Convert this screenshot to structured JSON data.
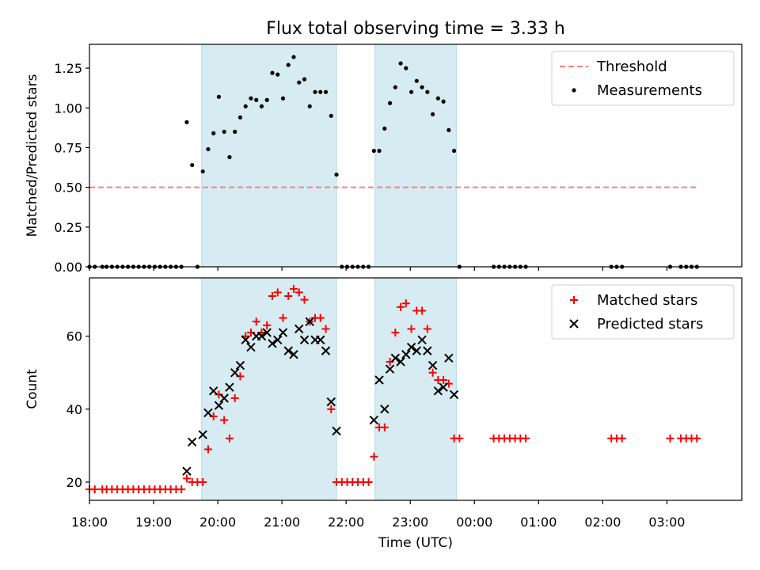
{
  "chart_data": {
    "title": "Flux total observing time = 3.33 h",
    "xlabel": "Time (UTC)",
    "x_tick_labels": [
      "18:00",
      "19:00",
      "20:00",
      "21:00",
      "22:00",
      "23:00",
      "00:00",
      "01:00",
      "02:00",
      "03:00"
    ],
    "observing_windows": [
      {
        "start": "19:45",
        "end": "21:51"
      },
      {
        "start": "22:27",
        "end": "23:43"
      }
    ],
    "window_color": "#add8e6",
    "panels": [
      {
        "type": "scatter",
        "ylabel": "Matched/Predicted stars",
        "ylim": [
          0,
          1.4
        ],
        "y_ticks": [
          0.0,
          0.25,
          0.5,
          0.75,
          1.0,
          1.25
        ],
        "y_tick_labels": [
          "0.00",
          "0.25",
          "0.50",
          "0.75",
          "1.00",
          "1.25"
        ],
        "legend_position": "top-right",
        "series": [
          {
            "name": "Threshold",
            "style": "dashed-line",
            "color": "#ff7f7f",
            "x": [
              "18:00",
              "03:30"
            ],
            "y": [
              0.5,
              0.5
            ]
          },
          {
            "name": "Measurements",
            "style": "dot",
            "color": "#000000",
            "x": [
              "18:00",
              "18:05",
              "18:12",
              "18:16",
              "18:21",
              "18:26",
              "18:31",
              "18:36",
              "18:41",
              "18:46",
              "18:51",
              "18:56",
              "19:01",
              "19:06",
              "19:11",
              "19:16",
              "19:21",
              "19:26",
              "19:31",
              "19:36",
              "19:41",
              "19:46",
              "19:51",
              "19:56",
              "20:01",
              "20:06",
              "20:11",
              "20:16",
              "20:21",
              "20:26",
              "20:31",
              "20:36",
              "20:41",
              "20:46",
              "20:51",
              "20:56",
              "21:01",
              "21:06",
              "21:11",
              "21:16",
              "21:21",
              "21:26",
              "21:31",
              "21:36",
              "21:41",
              "21:46",
              "21:51",
              "21:56",
              "22:01",
              "22:06",
              "22:11",
              "22:16",
              "22:21",
              "22:26",
              "22:31",
              "22:36",
              "22:41",
              "22:46",
              "22:51",
              "22:56",
              "23:01",
              "23:06",
              "23:11",
              "23:16",
              "23:21",
              "23:26",
              "23:31",
              "23:36",
              "23:41",
              "23:46",
              "00:18",
              "00:23",
              "00:28",
              "00:33",
              "00:38",
              "00:43",
              "00:48",
              "02:08",
              "02:13",
              "02:18",
              "03:03",
              "03:13",
              "03:18",
              "03:23",
              "03:28"
            ],
            "y": [
              0,
              0,
              0,
              0,
              0,
              0,
              0,
              0,
              0,
              0,
              0,
              0,
              0,
              0,
              0,
              0,
              0,
              0,
              0.91,
              0.64,
              0,
              0.6,
              0.74,
              0.84,
              1.07,
              0.85,
              0.69,
              0.85,
              0.94,
              1.01,
              1.06,
              1.05,
              1.01,
              1.05,
              1.22,
              1.21,
              1.06,
              1.27,
              1.32,
              1.16,
              1.18,
              1.01,
              1.1,
              1.1,
              1.1,
              0.95,
              0.58,
              0,
              0,
              0,
              0,
              0,
              0,
              0.73,
              0.73,
              0.87,
              1.03,
              1.13,
              1.28,
              1.25,
              1.1,
              1.17,
              1.13,
              1.1,
              0.96,
              1.06,
              1.04,
              0.86,
              0.73,
              0,
              0,
              0,
              0,
              0,
              0,
              0,
              0,
              0,
              0,
              0,
              0,
              0,
              0,
              0,
              0
            ]
          }
        ]
      },
      {
        "type": "scatter",
        "ylabel": "Count",
        "ylim": [
          15,
          76
        ],
        "y_ticks": [
          20,
          40,
          60
        ],
        "y_tick_labels": [
          "20",
          "40",
          "60"
        ],
        "legend_position": "top-right",
        "series": [
          {
            "name": "Matched stars",
            "style": "plus",
            "color": "#ff0000",
            "x": [
              "18:00",
              "18:05",
              "18:12",
              "18:16",
              "18:21",
              "18:26",
              "18:31",
              "18:36",
              "18:41",
              "18:46",
              "18:51",
              "18:56",
              "19:01",
              "19:06",
              "19:11",
              "19:16",
              "19:21",
              "19:26",
              "19:31",
              "19:36",
              "19:41",
              "19:46",
              "19:51",
              "19:56",
              "20:01",
              "20:06",
              "20:11",
              "20:16",
              "20:21",
              "20:26",
              "20:31",
              "20:36",
              "20:41",
              "20:46",
              "20:51",
              "20:56",
              "21:01",
              "21:06",
              "21:11",
              "21:16",
              "21:21",
              "21:26",
              "21:31",
              "21:36",
              "21:41",
              "21:46",
              "21:51",
              "21:56",
              "22:01",
              "22:06",
              "22:11",
              "22:16",
              "22:21",
              "22:26",
              "22:31",
              "22:36",
              "22:41",
              "22:46",
              "22:51",
              "22:56",
              "23:01",
              "23:06",
              "23:11",
              "23:16",
              "23:21",
              "23:26",
              "23:31",
              "23:36",
              "23:41",
              "23:46",
              "00:18",
              "00:23",
              "00:28",
              "00:33",
              "00:38",
              "00:43",
              "00:48",
              "02:08",
              "02:13",
              "02:18",
              "03:03",
              "03:13",
              "03:18",
              "03:23",
              "03:28"
            ],
            "y": [
              18,
              18,
              18,
              18,
              18,
              18,
              18,
              18,
              18,
              18,
              18,
              18,
              18,
              18,
              18,
              18,
              18,
              18,
              21,
              20,
              20,
              20,
              29,
              38,
              44,
              37,
              32,
              43,
              49,
              60,
              61,
              64,
              61,
              63,
              71,
              72,
              65,
              71,
              73,
              72,
              70,
              64,
              65,
              65,
              62,
              40,
              20,
              20,
              20,
              20,
              20,
              20,
              20,
              27,
              35,
              35,
              53,
              61,
              68,
              69,
              62,
              67,
              67,
              62,
              50,
              48,
              48,
              47,
              32,
              32,
              32,
              32,
              32,
              32,
              32,
              32,
              32,
              32,
              32,
              32,
              32,
              32,
              32,
              32,
              32
            ]
          },
          {
            "name": "Predicted stars",
            "style": "x",
            "color": "#000000",
            "x": [
              "19:31",
              "19:36",
              "19:46",
              "19:51",
              "19:56",
              "20:01",
              "20:06",
              "20:11",
              "20:16",
              "20:21",
              "20:26",
              "20:31",
              "20:36",
              "20:41",
              "20:46",
              "20:51",
              "20:56",
              "21:01",
              "21:06",
              "21:11",
              "21:16",
              "21:21",
              "21:26",
              "21:31",
              "21:36",
              "21:41",
              "21:46",
              "21:51",
              "22:26",
              "22:31",
              "22:36",
              "22:41",
              "22:46",
              "22:51",
              "22:56",
              "23:01",
              "23:06",
              "23:11",
              "23:16",
              "23:21",
              "23:26",
              "23:31",
              "23:36",
              "23:41"
            ],
            "y": [
              23,
              31,
              33,
              39,
              45,
              41,
              43,
              46,
              50,
              52,
              59,
              57,
              60,
              60,
              61,
              58,
              59,
              61,
              56,
              55,
              62,
              59,
              64,
              59,
              59,
              56,
              42,
              34,
              37,
              48,
              40,
              51,
              54,
              53,
              55,
              57,
              56,
              59,
              56,
              52,
              45,
              46,
              54,
              44
            ]
          }
        ]
      }
    ]
  }
}
